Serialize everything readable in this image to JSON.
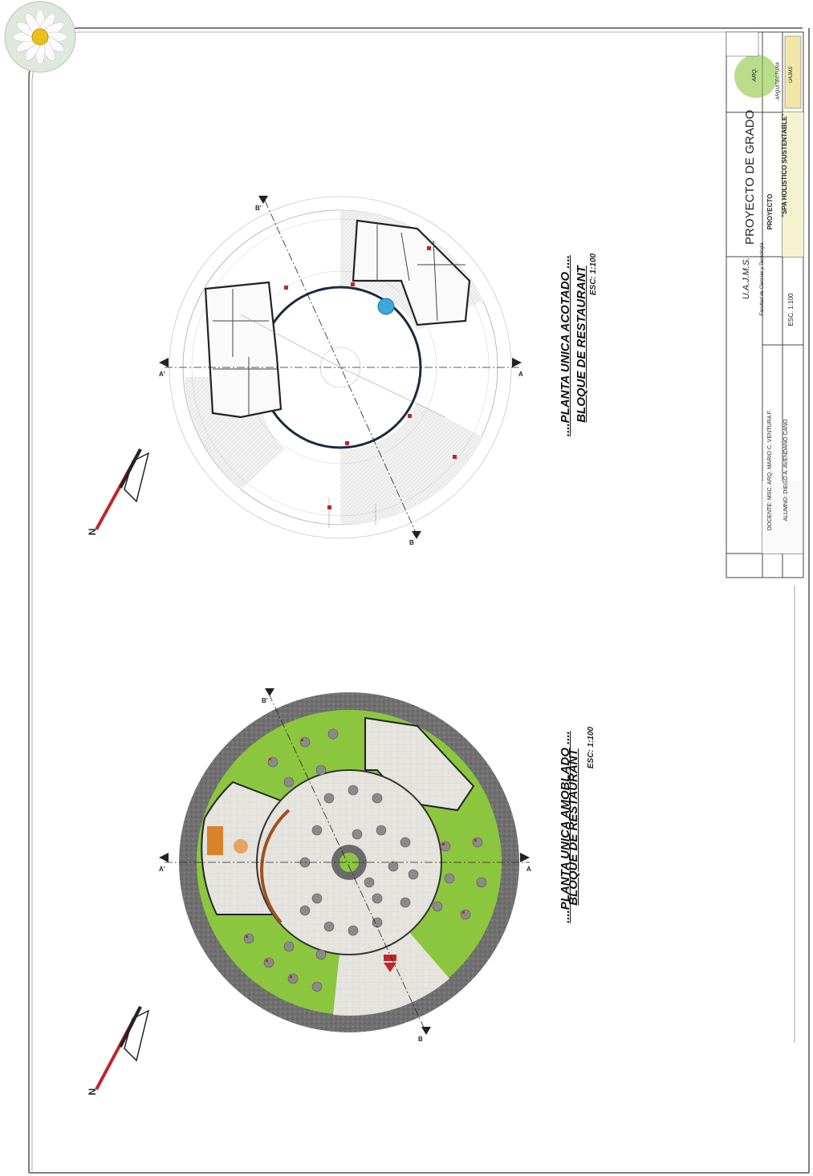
{
  "drawing_1": {
    "title": "....PLANTA UNICA ACOTADO ....",
    "subtitle": "BLOQUE DE RESTAURANT",
    "scale": "ESC: 1:100"
  },
  "drawing_2": {
    "title": "....PLANTA UNICA AMOBLADO ....",
    "subtitle": "BLOQUE DE RESTAURANT",
    "scale": "ESC: 1:100"
  },
  "section_labels": {
    "a": "A",
    "a_prime": "A'",
    "b": "B",
    "b_prime": "B'"
  },
  "north_label": "N",
  "title_block": {
    "project_heading": "PROYECTO DE GRADO",
    "project_label": "PROYECTO",
    "project_name": "\"SPA HOLISTICO SUSTENTABLE\"",
    "university": "U.A.J.M.S.",
    "faculty": "Facultad de Ciencias y Tecnologia",
    "scale": "ESC. 1:100",
    "docente": "DOCENTE: MSC. ARQ. MARIO C. VENTURA F.",
    "alumno": "ALUMNO: DIEGO A. AVENDAÑO CANO",
    "logo_text": "ARQ.",
    "career_text": "ARQUITECTURA",
    "career_sub": "UAJMS"
  },
  "colors": {
    "grass": "#8cc63f",
    "floor": "#e4e2dc",
    "border_ring": "#6b6b6b",
    "wall": "#222222",
    "pool": "#39a9dc",
    "accent_red": "#c0262c",
    "wood": "#d9822b"
  }
}
